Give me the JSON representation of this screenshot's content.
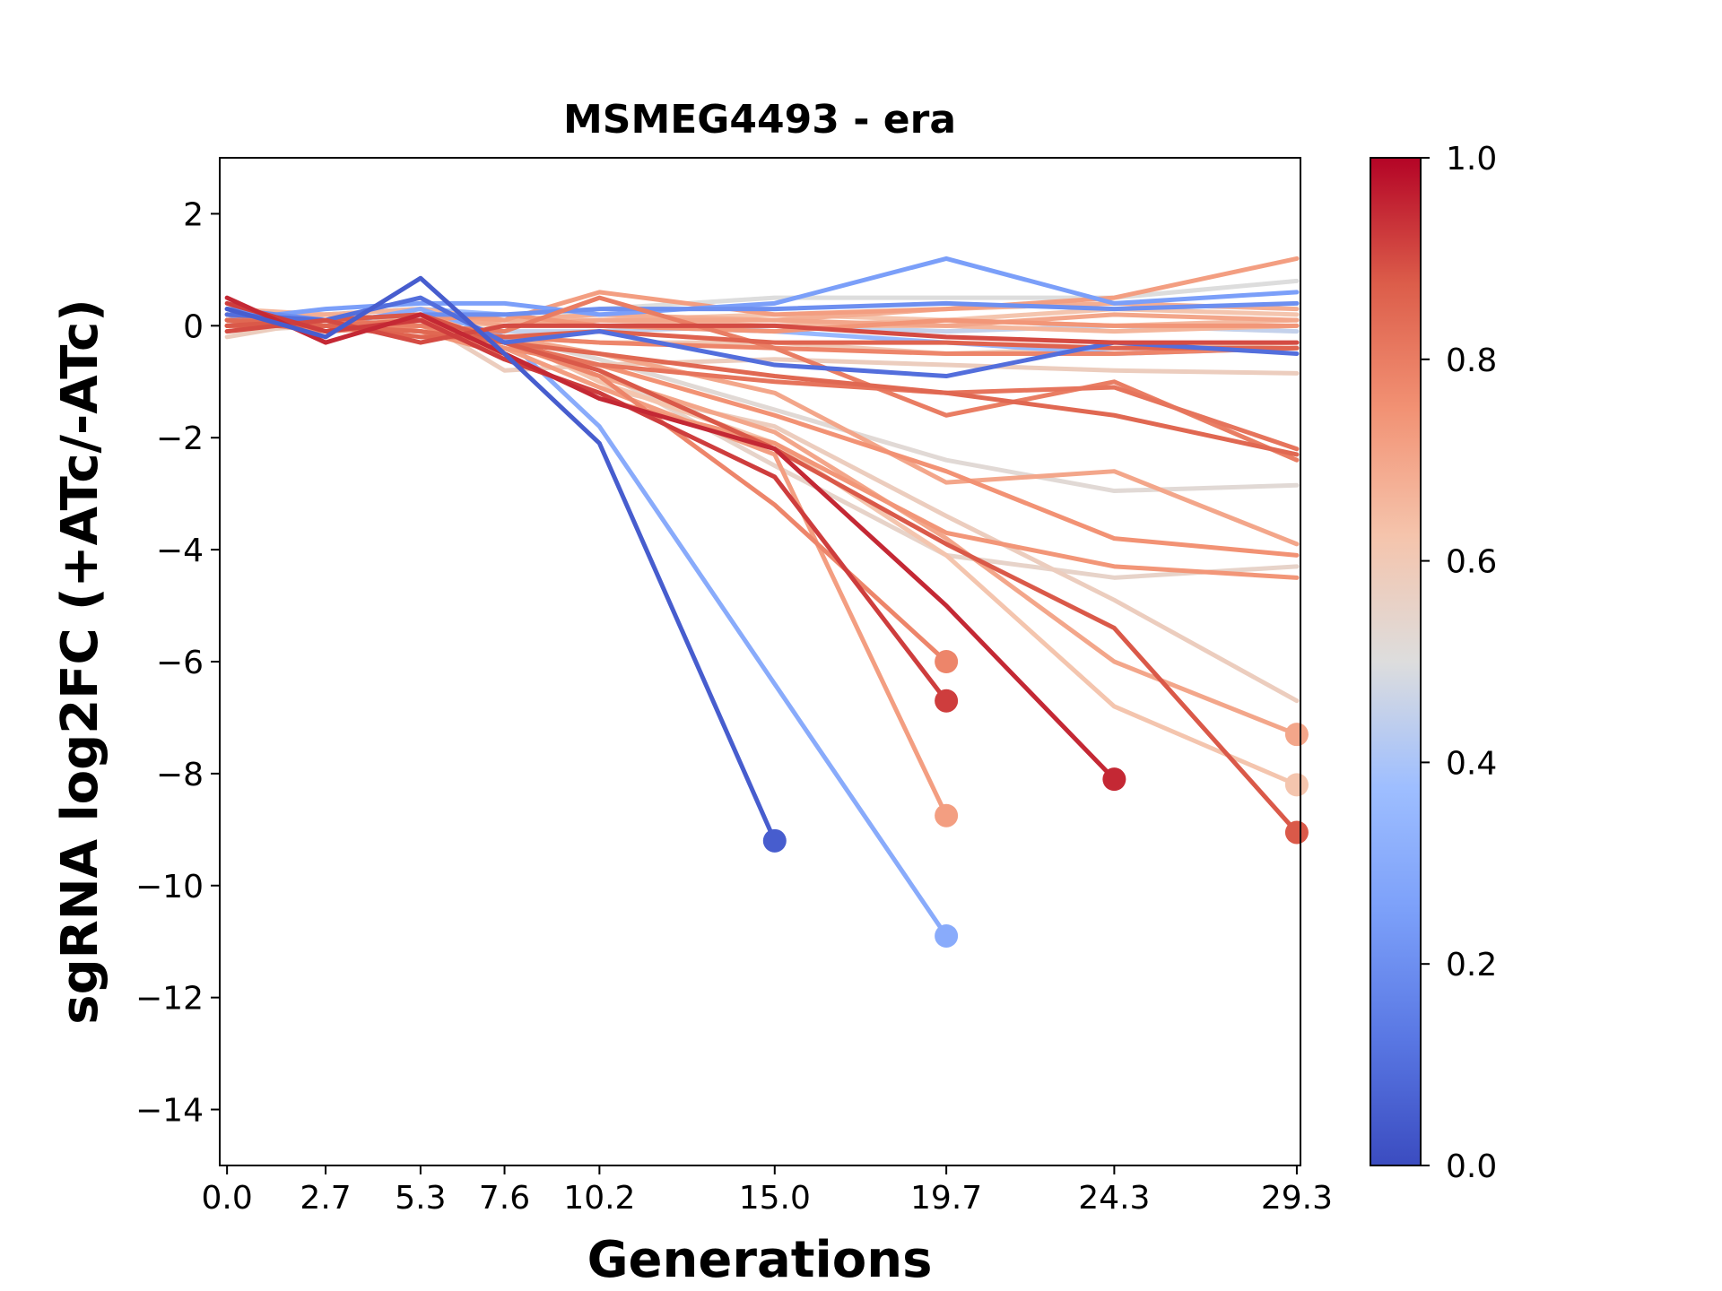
{
  "chart_data": {
    "type": "line",
    "title": "MSMEG4493 - era",
    "xlabel": "Generations",
    "ylabel": "sgRNA log2FC (+ATc/-ATc)",
    "x_ticks": [
      0.0,
      2.7,
      5.3,
      7.6,
      10.2,
      15.0,
      19.7,
      24.3,
      29.3
    ],
    "x_tick_labels": [
      "0.0",
      "2.7",
      "5.3",
      "7.6",
      "10.2",
      "15.0",
      "19.7",
      "24.3",
      "29.3"
    ],
    "y_ticks": [
      2,
      0,
      -2,
      -4,
      -6,
      -8,
      -10,
      -12,
      -14
    ],
    "y_tick_labels": [
      "2",
      "−2",
      "−4",
      "−6",
      "−8",
      "−10",
      "−12",
      "−14"
    ],
    "y_tick_labels_full": [
      "2",
      "0",
      "−2",
      "−4",
      "−6",
      "−8",
      "−10",
      "−12",
      "−14"
    ],
    "xlim": [
      -0.2,
      29.4
    ],
    "ylim": [
      -15,
      3
    ],
    "grid": false,
    "colormap": "coolwarm",
    "colorbar": {
      "range": [
        0.0,
        1.0
      ],
      "ticks": [
        0.0,
        0.2,
        0.4,
        0.6,
        0.8,
        1.0
      ],
      "tick_labels": [
        "0.0",
        "0.2",
        "0.4",
        "0.6",
        "0.8",
        "1.0"
      ]
    },
    "x": [
      0.0,
      2.7,
      5.3,
      7.6,
      10.2,
      15.0,
      19.7,
      24.3,
      29.3
    ],
    "series": [
      {
        "c": 0.05,
        "values": [
          0.3,
          -0.2,
          0.85,
          -0.5,
          -2.1,
          -9.2,
          null,
          null,
          null
        ],
        "dropout": true
      },
      {
        "c": 0.3,
        "values": [
          0.2,
          0.0,
          0.3,
          -0.2,
          -1.8,
          -6.4,
          -10.9,
          null,
          null
        ],
        "dropout": true
      },
      {
        "c": 0.92,
        "values": [
          0.4,
          -0.1,
          0.1,
          -0.6,
          -1.2,
          -2.7,
          -6.7,
          null,
          null
        ],
        "dropout": true
      },
      {
        "c": 0.78,
        "values": [
          0.1,
          0.0,
          0.0,
          -0.3,
          -0.9,
          -3.2,
          -6.0,
          null,
          null
        ],
        "dropout": true
      },
      {
        "c": 0.72,
        "values": [
          0.0,
          0.1,
          -0.1,
          -0.4,
          -1.1,
          -2.3,
          -8.75,
          null,
          null
        ],
        "dropout": true
      },
      {
        "c": 0.95,
        "values": [
          0.5,
          -0.3,
          0.2,
          -0.5,
          -1.3,
          -2.2,
          -5.0,
          -8.1,
          null
        ],
        "dropout": true
      },
      {
        "c": 0.88,
        "values": [
          0.0,
          0.1,
          0.2,
          -0.3,
          -0.8,
          -2.2,
          -3.9,
          -5.4,
          -9.05
        ],
        "dropout": true
      },
      {
        "c": 0.7,
        "values": [
          0.1,
          0.0,
          0.1,
          -0.3,
          -0.9,
          -1.9,
          -3.8,
          -6.0,
          -7.3
        ],
        "dropout": true
      },
      {
        "c": 0.62,
        "values": [
          -0.1,
          0.1,
          0.0,
          -0.2,
          -1.0,
          -2.1,
          -4.1,
          -6.8,
          -8.2
        ],
        "dropout": true
      },
      {
        "c": 0.58,
        "values": [
          0.0,
          0.2,
          0.1,
          -0.4,
          -1.1,
          -1.8,
          -3.4,
          -4.9,
          -6.7
        ],
        "dropout": false
      },
      {
        "c": 0.74,
        "values": [
          0.1,
          0.0,
          -0.1,
          -0.5,
          -1.3,
          -2.1,
          -3.7,
          -4.3,
          -4.5
        ],
        "dropout": false
      },
      {
        "c": 0.55,
        "values": [
          -0.1,
          0.0,
          0.2,
          -0.3,
          -0.8,
          -2.5,
          -4.1,
          -4.5,
          -4.3
        ],
        "dropout": false
      },
      {
        "c": 0.75,
        "values": [
          0.0,
          0.1,
          0.0,
          -0.4,
          -0.7,
          -1.6,
          -2.6,
          -3.8,
          -4.1
        ],
        "dropout": false
      },
      {
        "c": 0.7,
        "values": [
          0.2,
          -0.1,
          0.0,
          -0.2,
          -0.5,
          -1.2,
          -2.8,
          -2.6,
          -3.9
        ],
        "dropout": false
      },
      {
        "c": 0.52,
        "values": [
          0.0,
          0.1,
          0.1,
          -0.2,
          -0.6,
          -1.5,
          -2.4,
          -2.95,
          -2.85
        ],
        "dropout": false
      },
      {
        "c": 0.85,
        "values": [
          0.1,
          0.0,
          -0.1,
          -0.3,
          -0.5,
          -0.9,
          -1.2,
          -1.6,
          -2.3
        ],
        "dropout": false
      },
      {
        "c": 0.8,
        "values": [
          0.0,
          0.1,
          0.0,
          -0.1,
          0.5,
          -0.4,
          -1.6,
          -1.0,
          -2.4
        ],
        "dropout": false
      },
      {
        "c": 0.82,
        "values": [
          0.2,
          0.0,
          0.1,
          -0.3,
          -0.7,
          -1.0,
          -1.2,
          -1.1,
          -2.2
        ],
        "dropout": false
      },
      {
        "c": 0.1,
        "values": [
          0.2,
          0.1,
          0.5,
          -0.3,
          -0.1,
          -0.7,
          -0.9,
          -0.3,
          -0.5
        ],
        "dropout": false
      },
      {
        "c": 0.25,
        "values": [
          0.1,
          0.3,
          0.4,
          0.4,
          0.2,
          0.4,
          1.2,
          0.4,
          0.6
        ],
        "dropout": false
      },
      {
        "c": 0.72,
        "values": [
          0.0,
          0.1,
          0.2,
          0.1,
          0.6,
          0.2,
          0.3,
          0.5,
          1.2
        ],
        "dropout": false
      },
      {
        "c": 0.5,
        "values": [
          0.0,
          0.0,
          0.1,
          0.0,
          0.3,
          0.5,
          0.5,
          0.5,
          0.8
        ],
        "dropout": false
      },
      {
        "c": 0.2,
        "values": [
          0.3,
          0.1,
          0.2,
          0.2,
          0.3,
          0.3,
          0.4,
          0.3,
          0.4
        ],
        "dropout": false
      },
      {
        "c": 0.68,
        "values": [
          0.1,
          0.2,
          0.1,
          0.1,
          0.2,
          0.1,
          0.3,
          0.4,
          0.3
        ],
        "dropout": false
      },
      {
        "c": 0.62,
        "values": [
          0.0,
          0.0,
          0.1,
          0.0,
          0.1,
          0.2,
          0.1,
          0.3,
          0.2
        ],
        "dropout": false
      },
      {
        "c": 0.65,
        "values": [
          -0.1,
          0.1,
          0.0,
          0.1,
          0.0,
          0.0,
          0.1,
          0.0,
          0.1
        ],
        "dropout": false
      },
      {
        "c": 0.45,
        "values": [
          0.0,
          0.0,
          0.0,
          -0.1,
          -0.1,
          0.0,
          -0.1,
          0.0,
          -0.1
        ],
        "dropout": false
      },
      {
        "c": 0.6,
        "values": [
          0.2,
          0.0,
          -0.1,
          -0.2,
          -0.3,
          -0.3,
          -0.5,
          -0.4,
          -0.3
        ],
        "dropout": false
      },
      {
        "c": 0.35,
        "values": [
          0.0,
          0.2,
          0.3,
          0.2,
          0.0,
          -0.1,
          -0.3,
          -0.5,
          -0.4
        ],
        "dropout": false
      },
      {
        "c": 0.58,
        "values": [
          -0.2,
          0.1,
          0.1,
          -0.8,
          -0.7,
          -0.6,
          -0.7,
          -0.8,
          -0.85
        ],
        "dropout": false
      },
      {
        "c": 0.78,
        "values": [
          0.1,
          -0.1,
          0.0,
          -0.2,
          -0.3,
          -0.4,
          -0.5,
          -0.5,
          -0.4
        ],
        "dropout": false
      },
      {
        "c": 0.86,
        "values": [
          0.0,
          0.0,
          -0.2,
          -0.2,
          -0.1,
          -0.3,
          -0.3,
          -0.4,
          -0.4
        ],
        "dropout": false
      },
      {
        "c": 0.9,
        "values": [
          -0.1,
          0.1,
          -0.3,
          0.0,
          0.0,
          0.0,
          -0.2,
          -0.3,
          -0.3
        ],
        "dropout": false
      },
      {
        "c": 0.66,
        "values": [
          0.3,
          0.2,
          0.3,
          0.1,
          0.1,
          0.0,
          0.0,
          -0.1,
          0.0
        ],
        "dropout": false
      },
      {
        "c": 0.7,
        "values": [
          0.0,
          0.1,
          0.2,
          0.0,
          0.1,
          0.1,
          0.0,
          0.2,
          0.1
        ],
        "dropout": false
      },
      {
        "c": 0.74,
        "values": [
          0.1,
          0.0,
          0.1,
          0.2,
          0.0,
          -0.1,
          0.1,
          0.0,
          0.0
        ],
        "dropout": false
      }
    ]
  }
}
